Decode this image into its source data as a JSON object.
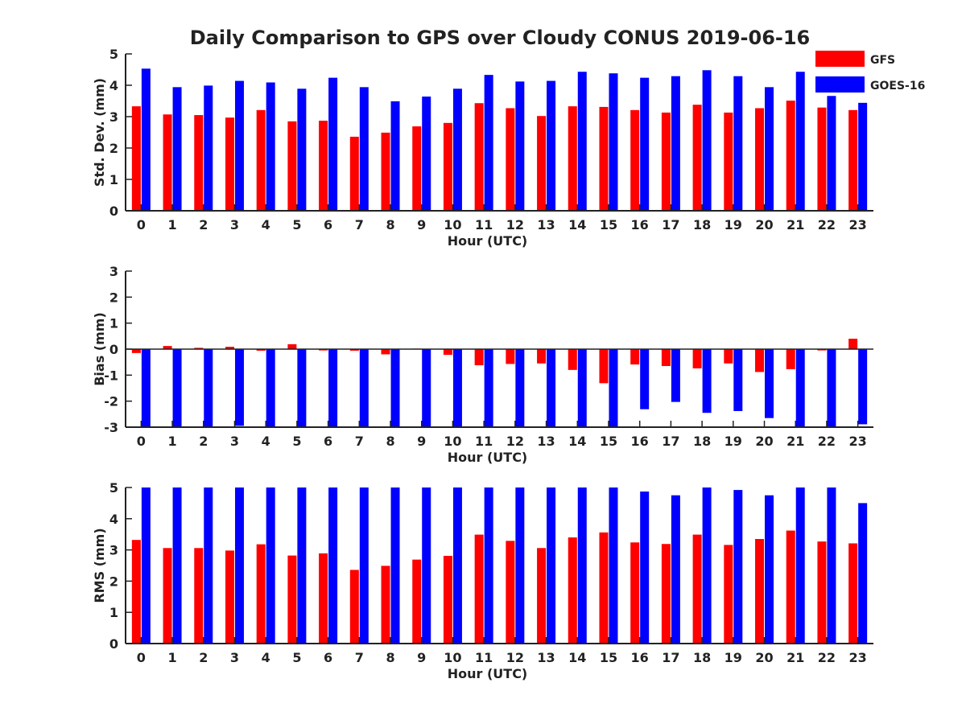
{
  "title": "Daily Comparison to GPS over Cloudy CONUS 2019-06-16",
  "legend": {
    "placement": "top-right",
    "entries": [
      {
        "name": "GFS",
        "color": "#ff0000"
      },
      {
        "name": "GOES-16",
        "color": "#0000ff"
      }
    ]
  },
  "chart_data": [
    {
      "type": "bar",
      "xlabel": "Hour (UTC)",
      "ylabel": "Std. Dev. (mm)",
      "ylim": [
        0,
        5
      ],
      "yticks": [
        0,
        1,
        2,
        3,
        4,
        5
      ],
      "categories": [
        "0",
        "1",
        "2",
        "3",
        "4",
        "5",
        "6",
        "7",
        "8",
        "9",
        "10",
        "11",
        "12",
        "13",
        "14",
        "15",
        "16",
        "17",
        "18",
        "19",
        "20",
        "21",
        "22",
        "23"
      ],
      "series": [
        {
          "name": "GFS",
          "color": "#ff0000",
          "values": [
            3.33,
            3.07,
            3.05,
            2.97,
            3.21,
            2.85,
            2.87,
            2.36,
            2.49,
            2.69,
            2.8,
            3.43,
            3.27,
            3.02,
            3.33,
            3.31,
            3.21,
            3.13,
            3.38,
            3.13,
            3.27,
            3.51,
            3.29,
            3.21
          ]
        },
        {
          "name": "GOES-16",
          "color": "#0000ff",
          "values": [
            4.53,
            3.94,
            3.99,
            4.14,
            4.09,
            3.89,
            4.24,
            3.94,
            3.49,
            3.64,
            3.89,
            4.33,
            4.12,
            4.14,
            4.43,
            4.38,
            4.24,
            4.29,
            4.48,
            4.29,
            3.94,
            4.43,
            3.66,
            3.44
          ]
        }
      ]
    },
    {
      "type": "bar",
      "xlabel": "Hour (UTC)",
      "ylabel": "Bias (mm)",
      "ylim": [
        -3,
        3
      ],
      "yticks": [
        -3,
        -2,
        -1,
        0,
        1,
        2,
        3
      ],
      "categories": [
        "0",
        "1",
        "2",
        "3",
        "4",
        "5",
        "6",
        "7",
        "8",
        "9",
        "10",
        "11",
        "12",
        "13",
        "14",
        "15",
        "16",
        "17",
        "18",
        "19",
        "20",
        "21",
        "22",
        "23"
      ],
      "series": [
        {
          "name": "GFS",
          "color": "#ff0000",
          "values": [
            -0.15,
            0.12,
            0.05,
            0.09,
            -0.06,
            0.19,
            -0.05,
            -0.06,
            -0.2,
            0.02,
            -0.22,
            -0.62,
            -0.57,
            -0.55,
            -0.8,
            -1.31,
            -0.59,
            -0.65,
            -0.74,
            -0.55,
            -0.88,
            -0.77,
            -0.05,
            0.4
          ]
        },
        {
          "name": "GOES-16",
          "color": "#0000ff",
          "values": [
            -3.0,
            -3.0,
            -3.0,
            -2.95,
            -3.0,
            -3.0,
            -3.0,
            -3.0,
            -3.0,
            -3.0,
            -3.0,
            -3.0,
            -3.0,
            -3.0,
            -3.0,
            -3.0,
            -2.31,
            -2.03,
            -2.45,
            -2.38,
            -2.65,
            -3.0,
            -3.0,
            -2.89
          ]
        }
      ]
    },
    {
      "type": "bar",
      "xlabel": "Hour (UTC)",
      "ylabel": "RMS (mm)",
      "ylim": [
        0,
        5
      ],
      "yticks": [
        0,
        1,
        2,
        3,
        4,
        5
      ],
      "categories": [
        "0",
        "1",
        "2",
        "3",
        "4",
        "5",
        "6",
        "7",
        "8",
        "9",
        "10",
        "11",
        "12",
        "13",
        "14",
        "15",
        "16",
        "17",
        "18",
        "19",
        "20",
        "21",
        "22",
        "23"
      ],
      "series": [
        {
          "name": "GFS",
          "color": "#ff0000",
          "values": [
            3.32,
            3.06,
            3.06,
            2.98,
            3.18,
            2.82,
            2.89,
            2.36,
            2.49,
            2.69,
            2.81,
            3.49,
            3.29,
            3.06,
            3.4,
            3.56,
            3.24,
            3.19,
            3.49,
            3.16,
            3.35,
            3.62,
            3.27,
            3.21
          ]
        },
        {
          "name": "GOES-16",
          "color": "#0000ff",
          "values": [
            5.0,
            5.0,
            5.0,
            5.0,
            5.0,
            5.0,
            5.0,
            5.0,
            5.0,
            5.0,
            5.0,
            5.0,
            5.0,
            5.0,
            5.0,
            5.0,
            4.87,
            4.75,
            5.0,
            4.92,
            4.75,
            5.0,
            5.0,
            4.5
          ]
        }
      ]
    }
  ]
}
